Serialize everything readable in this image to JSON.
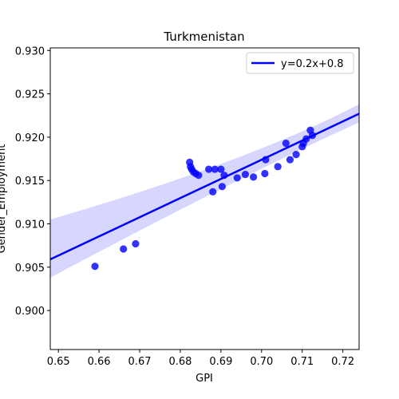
{
  "chart_data": {
    "type": "scatter",
    "title": "Turkmenistan",
    "xlabel": "GPI",
    "ylabel": "Gender_Employment",
    "xlim": [
      0.648,
      0.724
    ],
    "ylim": [
      0.8955,
      0.9303
    ],
    "xticks": [
      0.65,
      0.66,
      0.67,
      0.68,
      0.69,
      0.7,
      0.71,
      0.72
    ],
    "yticks": [
      0.9,
      0.905,
      0.91,
      0.915,
      0.92,
      0.925,
      0.93
    ],
    "xtick_labels": [
      "0.65",
      "0.66",
      "0.67",
      "0.68",
      "0.69",
      "0.70",
      "0.71",
      "0.72"
    ],
    "ytick_labels": [
      "0.900",
      "0.905",
      "0.910",
      "0.915",
      "0.920",
      "0.925",
      "0.930"
    ],
    "grid": false,
    "legend_position": "top-right",
    "colors": {
      "points": "#0000ff",
      "line": "#0000ff",
      "band": "#d6d6ff"
    },
    "points": [
      {
        "x": 0.659,
        "y": 0.9051
      },
      {
        "x": 0.666,
        "y": 0.9071
      },
      {
        "x": 0.669,
        "y": 0.9077
      },
      {
        "x": 0.6823,
        "y": 0.9171
      },
      {
        "x": 0.6825,
        "y": 0.9166
      },
      {
        "x": 0.6828,
        "y": 0.9163
      },
      {
        "x": 0.6832,
        "y": 0.916
      },
      {
        "x": 0.6838,
        "y": 0.9158
      },
      {
        "x": 0.6845,
        "y": 0.9156
      },
      {
        "x": 0.687,
        "y": 0.9163
      },
      {
        "x": 0.688,
        "y": 0.9137
      },
      {
        "x": 0.6885,
        "y": 0.9163
      },
      {
        "x": 0.69,
        "y": 0.9163
      },
      {
        "x": 0.6903,
        "y": 0.9143
      },
      {
        "x": 0.6908,
        "y": 0.9156
      },
      {
        "x": 0.694,
        "y": 0.9153
      },
      {
        "x": 0.696,
        "y": 0.9157
      },
      {
        "x": 0.698,
        "y": 0.9154
      },
      {
        "x": 0.7008,
        "y": 0.9158
      },
      {
        "x": 0.701,
        "y": 0.9174
      },
      {
        "x": 0.704,
        "y": 0.9166
      },
      {
        "x": 0.706,
        "y": 0.9193
      },
      {
        "x": 0.707,
        "y": 0.9174
      },
      {
        "x": 0.7085,
        "y": 0.918
      },
      {
        "x": 0.71,
        "y": 0.9189
      },
      {
        "x": 0.7103,
        "y": 0.9193
      },
      {
        "x": 0.711,
        "y": 0.9198
      },
      {
        "x": 0.712,
        "y": 0.9208
      },
      {
        "x": 0.7125,
        "y": 0.9202
      }
    ],
    "regression": {
      "label": "y=0.2x+0.8",
      "x": [
        0.648,
        0.724
      ],
      "y": [
        0.9059,
        0.9227
      ],
      "ci_upper": [
        0.9105,
        0.9238
      ],
      "ci_lower": [
        0.9038,
        0.9217
      ],
      "ci_mid_x": 0.697,
      "ci_mid_upper": 0.9172,
      "ci_mid_lower": 0.916
    }
  }
}
